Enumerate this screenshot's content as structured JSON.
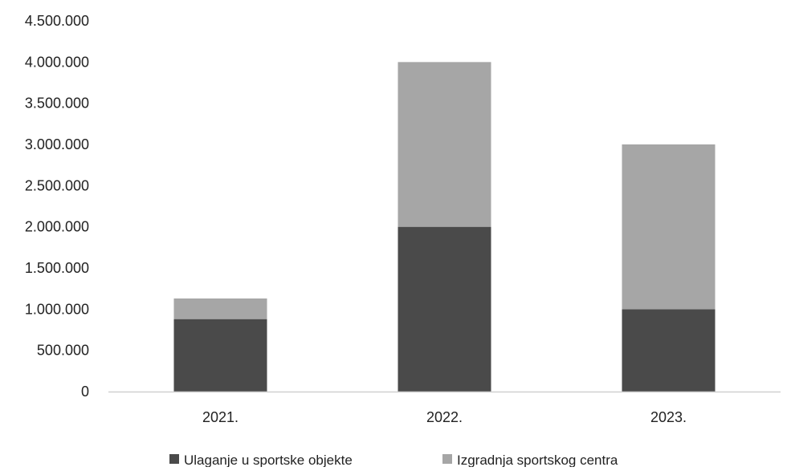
{
  "chart_data": {
    "type": "bar",
    "stacked": true,
    "title": "",
    "xlabel": "",
    "ylabel": "",
    "categories": [
      "2021.",
      "2022.",
      "2023."
    ],
    "series": [
      {
        "name": "Ulaganje u sportske objekte",
        "color": "#4a4a4a",
        "values": [
          880000,
          2000000,
          1000000
        ]
      },
      {
        "name": "Izgradnja sportskog centra",
        "color": "#a6a6a6",
        "values": [
          250000,
          2000000,
          2000000
        ]
      }
    ],
    "ylim": [
      0,
      4500000
    ],
    "yticks": [
      0,
      500000,
      1000000,
      1500000,
      2000000,
      2500000,
      3000000,
      3500000,
      4000000,
      4500000
    ],
    "ytick_labels": [
      "0",
      "500.000",
      "1.000.000",
      "1.500.000",
      "2.000.000",
      "2.500.000",
      "3.000.000",
      "3.500.000",
      "4.000.000",
      "4.500.000"
    ],
    "grid": false,
    "legend_position": "bottom"
  }
}
